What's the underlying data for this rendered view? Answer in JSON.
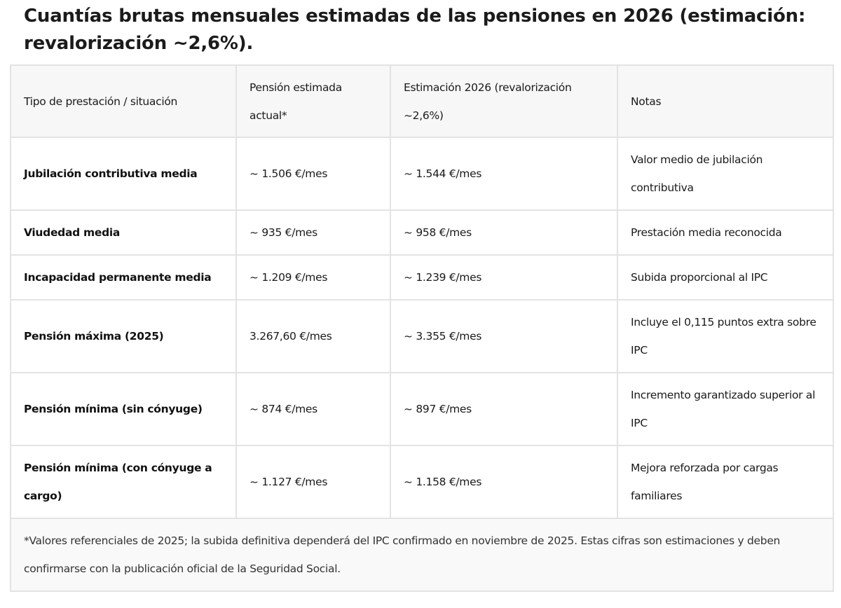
{
  "title": "Cuantías brutas mensuales estimadas de las pensiones en 2026 (estimación: revalorización ~2,6%).",
  "table": {
    "headers": [
      "Tipo de prestación / situación",
      "Pensión estimada actual*",
      "Estimación 2026 (revalorización ~2,6%)",
      "Notas"
    ],
    "rows": [
      [
        "Jubilación contributiva media",
        "~ 1.506 €/mes",
        "~ 1.544 €/mes",
        "Valor medio de jubilación contributiva"
      ],
      [
        "Viudedad media",
        "~ 935 €/mes",
        "~ 958 €/mes",
        "Prestación media reconocida"
      ],
      [
        "Incapacidad permanente media",
        "~ 1.209 €/mes",
        "~ 1.239 €/mes",
        "Subida proporcional al IPC"
      ],
      [
        "Pensión máxima (2025)",
        "3.267,60 €/mes",
        "~ 3.355 €/mes",
        "Incluye el 0,115 puntos extra sobre IPC"
      ],
      [
        "Pensión mínima (sin cónyuge)",
        "~ 874 €/mes",
        "~ 897 €/mes",
        "Incremento garantizado superior al IPC"
      ],
      [
        "Pensión mínima (con cónyuge a cargo)",
        "~ 1.127 €/mes",
        "~ 1.158 €/mes",
        "Mejora reforzada por cargas familiares"
      ]
    ],
    "footnote": "*Valores referenciales de 2025; la subida definitiva dependerá del IPC confirmado en noviembre de 2025. Estas cifras son estimaciones y deben confirmarse con la publicación oficial de la Seguridad Social."
  }
}
